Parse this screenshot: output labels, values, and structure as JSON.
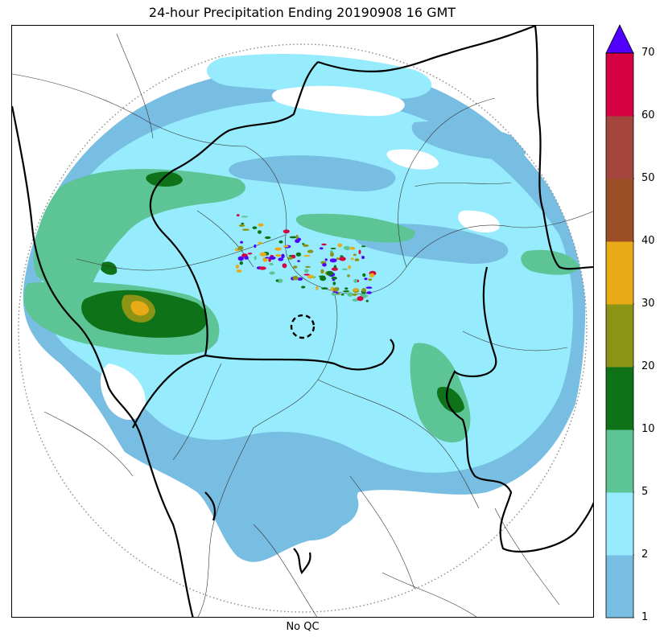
{
  "title": "24-hour Precipitation Ending 20190908 16 GMT",
  "caption": "No QC",
  "colorbar": {
    "levels": [
      "1",
      "2",
      "5",
      "10",
      "20",
      "30",
      "40",
      "50",
      "60",
      "70"
    ],
    "colors": [
      "#78bde2",
      "#96ecfc",
      "#5cc495",
      "#0d7218",
      "#8c9416",
      "#e9aa17",
      "#9c4e26",
      "#a4463e",
      "#d60142"
    ],
    "extend_color": "#5100ff"
  },
  "colors": {
    "c1": "#78bde2",
    "c2": "#96ecfc",
    "c5": "#5cc495",
    "c10": "#0d7218",
    "c20": "#8c9416",
    "c30": "#e9aa17",
    "c40": "#9c4e26",
    "c60": "#d60142",
    "over": "#5100ff"
  }
}
